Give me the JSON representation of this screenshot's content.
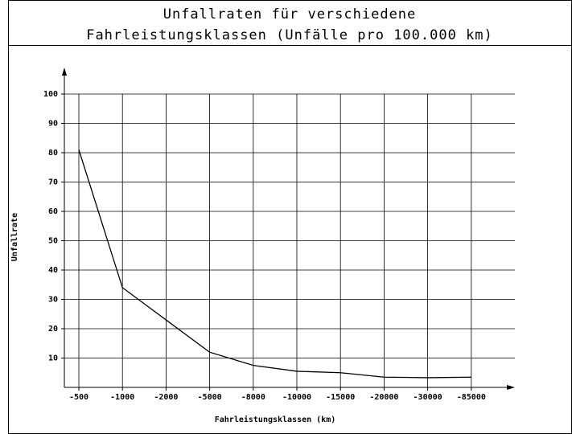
{
  "chart_data": {
    "type": "line",
    "title": "Unfallraten für verschiedene",
    "subtitle": "Fahrleistungsklassen (Unfälle pro 100.000 km)",
    "x_label": "Fahrleistungsklassen (km)",
    "y_label": "Unfallrate",
    "categories": [
      "-500",
      "-1000",
      "-2000",
      "-5000",
      "-8000",
      "-10000",
      "-15000",
      "-20000",
      "-30000",
      "-85000"
    ],
    "values": [
      81,
      34,
      23,
      12,
      7.5,
      5.5,
      5,
      3.5,
      3.3,
      3.5
    ],
    "color": "#000000",
    "ylim": [
      0,
      100
    ],
    "yticks": [
      10,
      20,
      30,
      40,
      50,
      60,
      70,
      80,
      90,
      100
    ],
    "grid": true
  }
}
